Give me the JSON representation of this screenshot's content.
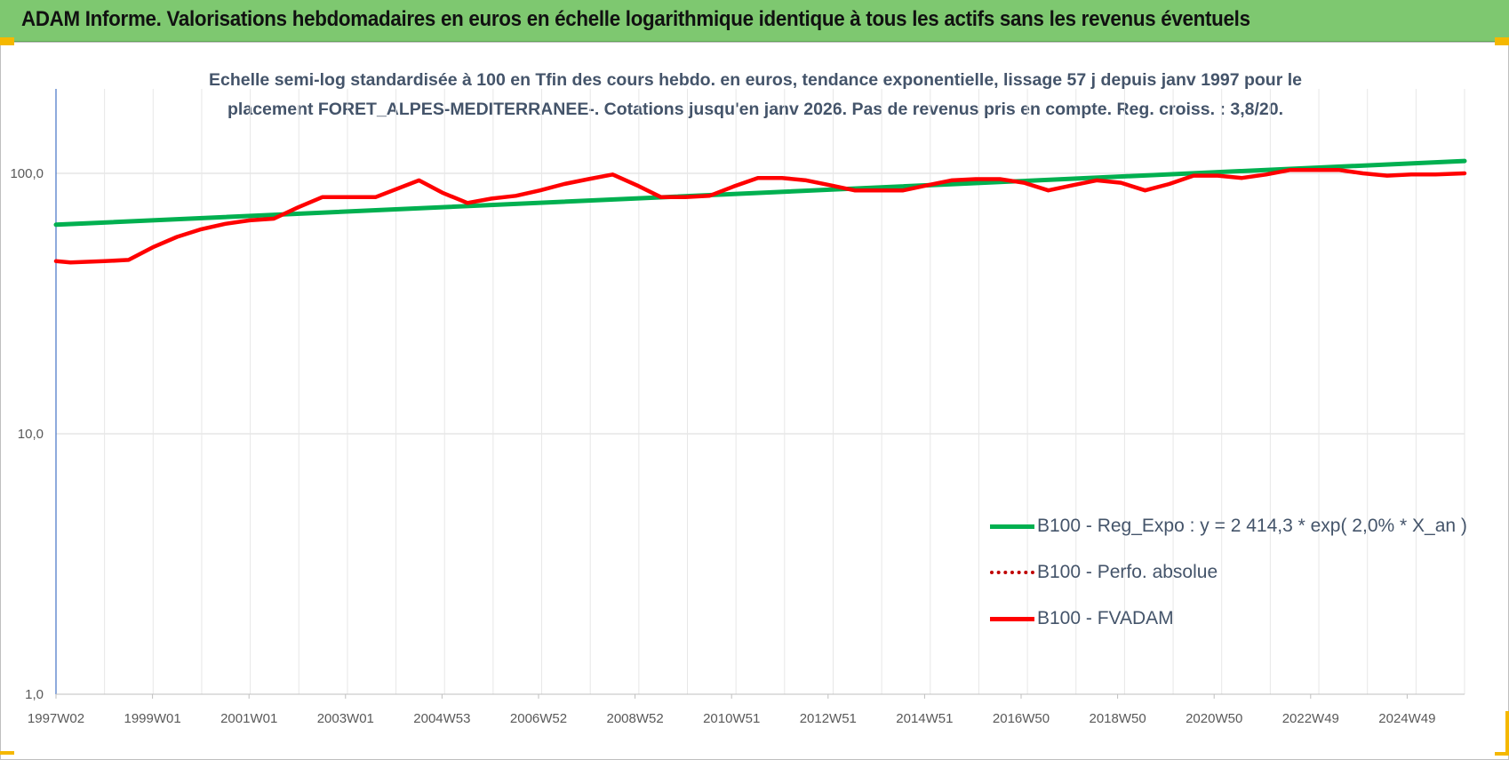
{
  "banner": {
    "title": "ADAM Informe. Valorisations hebdomadaires en euros en échelle logarithmique identique à tous les actifs sans les revenus éventuels"
  },
  "colors": {
    "banner_bg": "#7ec870",
    "accent_corner": "#f5b800",
    "reg_expo": "#00b050",
    "fvadam": "#ff0000",
    "perfo_absolue": "#c00000",
    "axis": "#4472c4",
    "grid": "#d9d9d9"
  },
  "chart_data": {
    "type": "line",
    "title_line1": "Echelle semi-log standardisée à 100 en Tfin des cours hebdo. en euros, tendance exponentielle, lissage 57 j depuis janv 1997 pour le",
    "title_line2": "placement FORET_ALPES-MEDITERRANEE-. Cotations jusqu'en janv 2026. Pas de revenus pris en compte. Reg. croiss. : 3,8/20.",
    "y_scale": "log",
    "ylim": [
      1,
      200
    ],
    "y_ticks": [
      "1,0",
      "10,0",
      "100,0"
    ],
    "x_tick_labels": [
      "1997W02",
      "1999W01",
      "2001W01",
      "2003W01",
      "2004W53",
      "2006W52",
      "2008W52",
      "2010W51",
      "2012W51",
      "2014W51",
      "2016W50",
      "2018W50",
      "2020W50",
      "2022W49",
      "2024W49"
    ],
    "x_range": [
      1997.0,
      2026.1
    ],
    "grid": true,
    "legend_position": "bottom-right",
    "series": [
      {
        "name": "B100 - Reg_Expo : y = 2 414,3 * exp( 2,0% *  X_an )",
        "style": "solid",
        "color": "#00b050",
        "x": [
          1997.0,
          2026.1
        ],
        "values": [
          63.5,
          111.5
        ]
      },
      {
        "name": "B100 - Perfo. absolue",
        "style": "dotted",
        "color": "#c00000",
        "x": [],
        "values": []
      },
      {
        "name": "B100 - FVADAM",
        "style": "solid",
        "color": "#ff0000",
        "x": [
          1997.0,
          1997.3,
          1998.0,
          1998.5,
          1999.0,
          1999.5,
          2000.0,
          2000.5,
          2001.0,
          2001.5,
          2002.0,
          2002.5,
          2003.0,
          2003.6,
          2004.5,
          2005.0,
          2005.5,
          2006.0,
          2006.5,
          2007.0,
          2007.5,
          2008.0,
          2008.5,
          2009.0,
          2009.5,
          2010.0,
          2010.5,
          2011.0,
          2011.5,
          2012.0,
          2012.5,
          2013.0,
          2013.5,
          2014.0,
          2014.5,
          2015.0,
          2015.5,
          2016.0,
          2016.5,
          2017.0,
          2017.5,
          2018.0,
          2018.5,
          2019.0,
          2019.5,
          2020.0,
          2020.5,
          2021.0,
          2021.5,
          2022.0,
          2022.5,
          2023.0,
          2023.5,
          2024.0,
          2024.5,
          2025.0,
          2025.5,
          2026.1
        ],
        "values": [
          46,
          45.5,
          46,
          46.5,
          52,
          57,
          61,
          64,
          66,
          67,
          74,
          81,
          81,
          81,
          94,
          84,
          77,
          80,
          82,
          86,
          91,
          95,
          99,
          90,
          81,
          81,
          82,
          89,
          96,
          96,
          94,
          90,
          86,
          86,
          86,
          90,
          94,
          95,
          95,
          92,
          86,
          90,
          94,
          92,
          86,
          91,
          98,
          98,
          96,
          99,
          103,
          103,
          103,
          100,
          98,
          99,
          99,
          100
        ]
      }
    ]
  }
}
